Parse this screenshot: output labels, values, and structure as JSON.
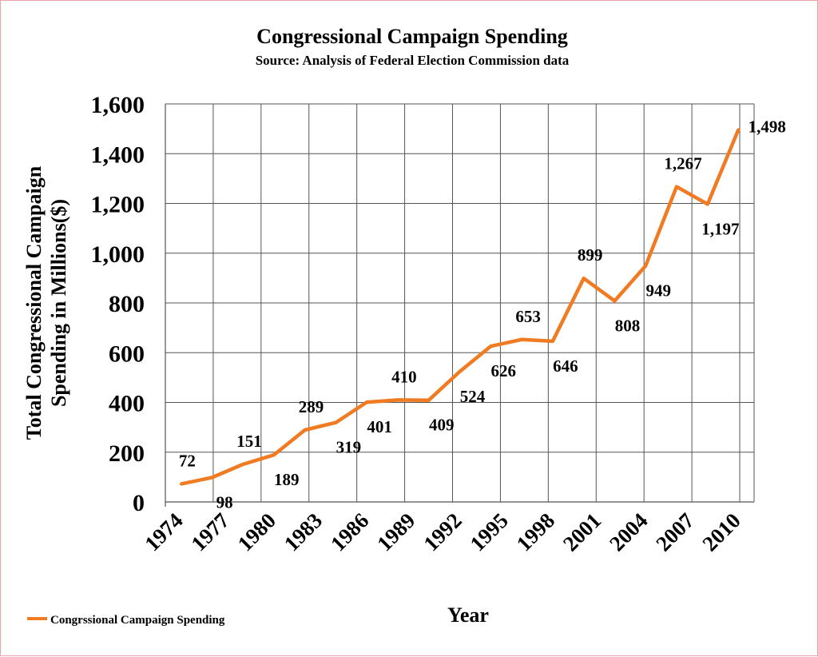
{
  "chart_data": {
    "type": "line",
    "title": "Congressional Campaign Spending",
    "subtitle": "Source: Analysis of Federal Election Commission data",
    "xlabel": "Year",
    "ylabel_lines": [
      "Total Congressional Campaign",
      "Spending in Millions($)"
    ],
    "ylim": [
      0,
      1600
    ],
    "y_ticks": [
      0,
      200,
      400,
      600,
      800,
      1000,
      1200,
      1400,
      1600
    ],
    "y_tick_labels": [
      "0",
      "200",
      "400",
      "600",
      "800",
      "1,000",
      "1,200",
      "1,400",
      "1,600"
    ],
    "x_tick_labels": [
      "1974",
      "1977",
      "1980",
      "1983",
      "1986",
      "1989",
      "1992",
      "1995",
      "1998",
      "2001",
      "2004",
      "2007",
      "2010"
    ],
    "x": [
      1974,
      1976,
      1978,
      1980,
      1982,
      1984,
      1986,
      1988,
      1990,
      1992,
      1994,
      1996,
      1998,
      2000,
      2002,
      2004,
      2006,
      2008,
      2010
    ],
    "series": [
      {
        "name": "Congrssional Campaign Spending",
        "color": "#f07b22",
        "values": [
          72,
          98,
          151,
          189,
          289,
          319,
          401,
          410,
          409,
          524,
          626,
          653,
          646,
          899,
          808,
          949,
          1267,
          1197,
          1498
        ],
        "value_labels": [
          "72",
          "98",
          "151",
          "189",
          "289",
          "319",
          "401",
          "410",
          "409",
          "524",
          "626",
          "653",
          "646",
          "899",
          "808",
          "949",
          "1,267",
          "1,197",
          "1,498"
        ],
        "label_side": [
          "above",
          "below",
          "above",
          "below",
          "above",
          "below",
          "below",
          "above",
          "below",
          "below",
          "below",
          "above",
          "below",
          "above",
          "below",
          "below",
          "above",
          "below",
          "above"
        ]
      }
    ],
    "grid": true,
    "legend_position": "bottom-left"
  }
}
